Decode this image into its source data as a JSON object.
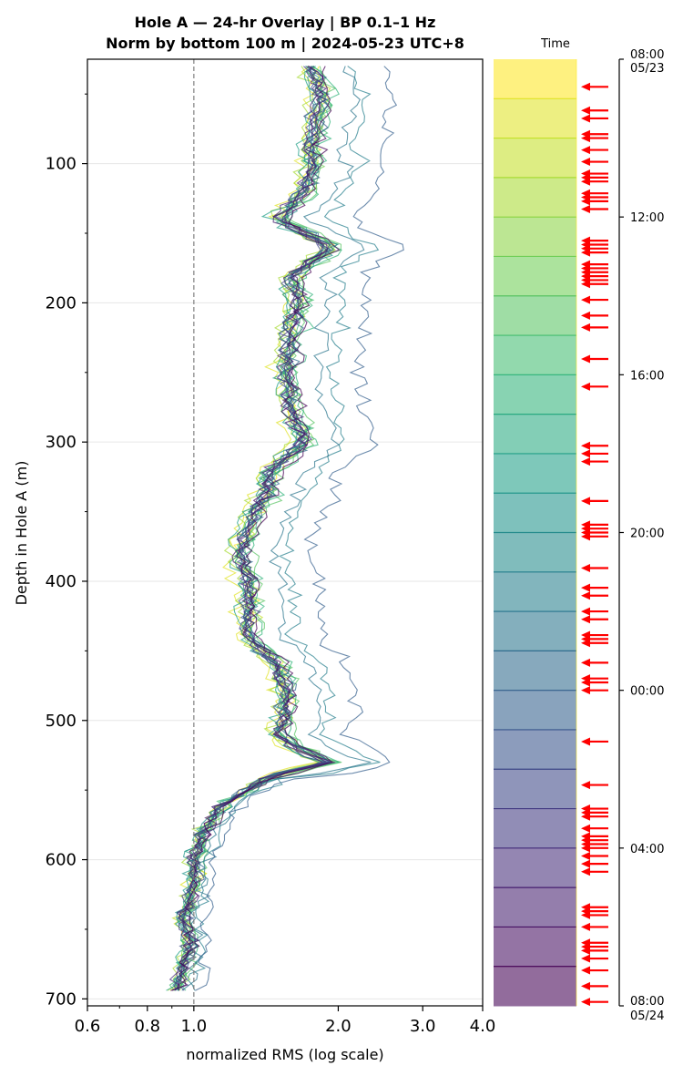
{
  "chart_data": {
    "type": "line",
    "title_line1": "Hole A — 24-hr Overlay  |  BP 0.1–1 Hz",
    "title_line2": "Norm by bottom 100 m  |  2024-05-23 UTC+8",
    "xlabel": "normalized RMS  (log scale)",
    "ylabel": "Depth in Hole A (m)",
    "x_scale": "log",
    "xlim": [
      0.6,
      4.0
    ],
    "x_ticks": [
      0.6,
      0.8,
      1.0,
      2.0,
      3.0,
      4.0
    ],
    "x_tick_labels": [
      "0.6",
      "0.8",
      "1.0",
      "2.0",
      "3.0",
      "4.0"
    ],
    "ylim": [
      25,
      705
    ],
    "y_inverted": true,
    "y_ticks": [
      100,
      200,
      300,
      400,
      500,
      600,
      700
    ],
    "y_tick_labels": [
      "100",
      "200",
      "300",
      "400",
      "500",
      "600",
      "700"
    ],
    "reference_line_x": 1.0,
    "grid": "horizontal",
    "series_count": 24,
    "colormap": "viridis (yellow = start 08:00 05/23, dark purple = end 08:00 05/24)",
    "median_profile": {
      "depth": [
        30,
        50,
        70,
        90,
        100,
        120,
        140,
        150,
        160,
        180,
        200,
        220,
        250,
        280,
        300,
        320,
        340,
        360,
        380,
        400,
        420,
        440,
        460,
        480,
        500,
        510,
        520,
        530,
        540,
        560,
        580,
        600,
        620,
        640,
        660,
        680,
        695
      ],
      "rms": [
        1.75,
        1.85,
        1.8,
        1.75,
        1.78,
        1.7,
        1.5,
        1.7,
        1.95,
        1.6,
        1.65,
        1.6,
        1.55,
        1.6,
        1.7,
        1.45,
        1.4,
        1.3,
        1.25,
        1.3,
        1.3,
        1.3,
        1.5,
        1.55,
        1.55,
        1.5,
        1.65,
        1.9,
        1.45,
        1.15,
        1.05,
        1.0,
        1.0,
        0.95,
        0.98,
        0.95,
        0.92
      ]
    },
    "colorbar": {
      "label": "Time",
      "top_label_time": "08:00",
      "top_label_date": "05/23",
      "bottom_label_time": "08:00",
      "bottom_label_date": "05/24",
      "tick_labels": [
        "12:00",
        "16:00",
        "20:00",
        "00:00",
        "04:00"
      ],
      "tick_hours": [
        4,
        8,
        12,
        16,
        20
      ]
    },
    "event_arrows_hours": [
      0.7,
      1.3,
      1.5,
      1.9,
      2.0,
      2.3,
      2.6,
      2.9,
      3.0,
      3.1,
      3.4,
      3.5,
      3.6,
      3.8,
      4.6,
      4.7,
      4.8,
      4.9,
      5.2,
      5.3,
      5.4,
      5.5,
      5.6,
      5.7,
      6.1,
      6.5,
      6.8,
      7.6,
      8.3,
      9.8,
      10.0,
      10.2,
      11.2,
      11.8,
      11.9,
      12.0,
      12.1,
      12.9,
      13.4,
      13.6,
      14.0,
      14.2,
      14.6,
      14.7,
      14.8,
      15.3,
      15.7,
      15.8,
      16.0,
      17.3,
      18.4,
      19.0,
      19.1,
      19.2,
      19.5,
      19.7,
      19.8,
      19.9,
      20.0,
      20.2,
      20.4,
      20.6,
      21.5,
      21.6,
      21.7,
      22.0,
      22.4,
      22.5,
      22.6,
      22.8,
      23.1,
      23.5,
      23.9
    ]
  },
  "colors": {
    "grid": "#e6e6e6",
    "axes": "#000000",
    "ref_line": "#808080",
    "arrow": "#ff0000",
    "viridis_start": "#fde725",
    "viridis_end": "#440154"
  }
}
